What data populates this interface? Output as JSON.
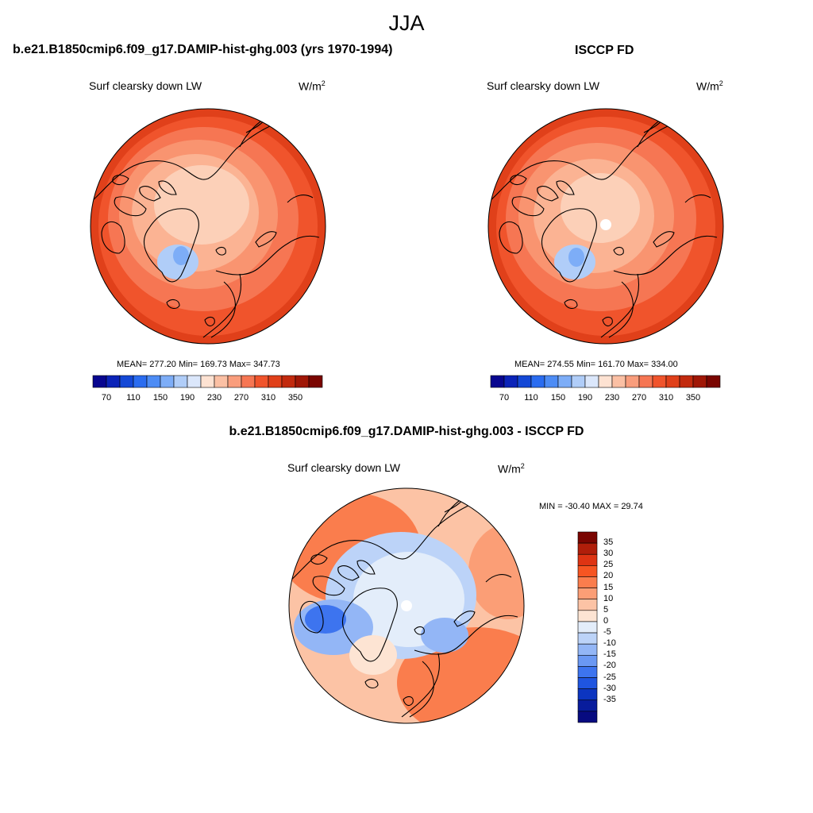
{
  "season": "JJA",
  "panels": {
    "model": {
      "title": "b.e21.B1850cmip6.f09_g17.DAMIP-hist-ghg.003 (yrs 1970-1994)",
      "variable": "Surf clearsky down LW",
      "units": "W/m",
      "units_exp": "2",
      "stats": "MEAN= 277.20  Min= 169.73  Max= 347.73"
    },
    "obs": {
      "title": "ISCCP FD",
      "variable": "Surf clearsky down LW",
      "units": "W/m",
      "units_exp": "2",
      "stats": "MEAN= 274.55  Min= 161.70  Max= 334.00"
    },
    "diff": {
      "title": "b.e21.B1850cmip6.f09_g17.DAMIP-hist-ghg.003 - ISCCP FD",
      "variable": "Surf clearsky down LW",
      "units": "W/m",
      "units_exp": "2",
      "stats": "MIN = -30.40 MAX =  29.74"
    }
  },
  "abs_colorbar": {
    "colors": [
      "#08068f",
      "#0b23b8",
      "#1448d6",
      "#2a6cf0",
      "#4d8cf5",
      "#7dadf7",
      "#b0cdf8",
      "#dbe7fb",
      "#fde2d2",
      "#fbc0a4",
      "#f99d7c",
      "#f67653",
      "#f0542c",
      "#e0401a",
      "#c22a0e",
      "#a01706",
      "#7a0501"
    ],
    "labels": [
      "70",
      "110",
      "150",
      "190",
      "230",
      "270",
      "310",
      "350"
    ]
  },
  "diff_colorbar": {
    "colors": [
      "#7a0501",
      "#b01e0a",
      "#de3413",
      "#f65522",
      "#fa7d4d",
      "#fb9e76",
      "#fcc3a5",
      "#fde4d3",
      "#e3edfa",
      "#bcd3f8",
      "#93b6f6",
      "#6a98f3",
      "#3d74ef",
      "#1f55e0",
      "#0c35c0",
      "#081c9c",
      "#070b80"
    ],
    "labels": [
      "35",
      "30",
      "25",
      "20",
      "15",
      "10",
      "5",
      "0",
      "-5",
      "-10",
      "-15",
      "-20",
      "-25",
      "-30",
      "-35"
    ]
  },
  "map_colors": {
    "abs_warm": [
      "#fcd0b8",
      "#fbb393",
      "#f99470",
      "#f67653",
      "#f0542c",
      "#e0401a"
    ],
    "abs_cool": [
      "#7dadf7",
      "#b0cdf8"
    ],
    "diff_pos": [
      "#fde4d3",
      "#fcc3a5",
      "#fb9e76",
      "#fa7d4d",
      "#f65522"
    ],
    "diff_neg": [
      "#e3edfa",
      "#bcd3f8",
      "#93b6f6",
      "#3d74ef"
    ]
  }
}
